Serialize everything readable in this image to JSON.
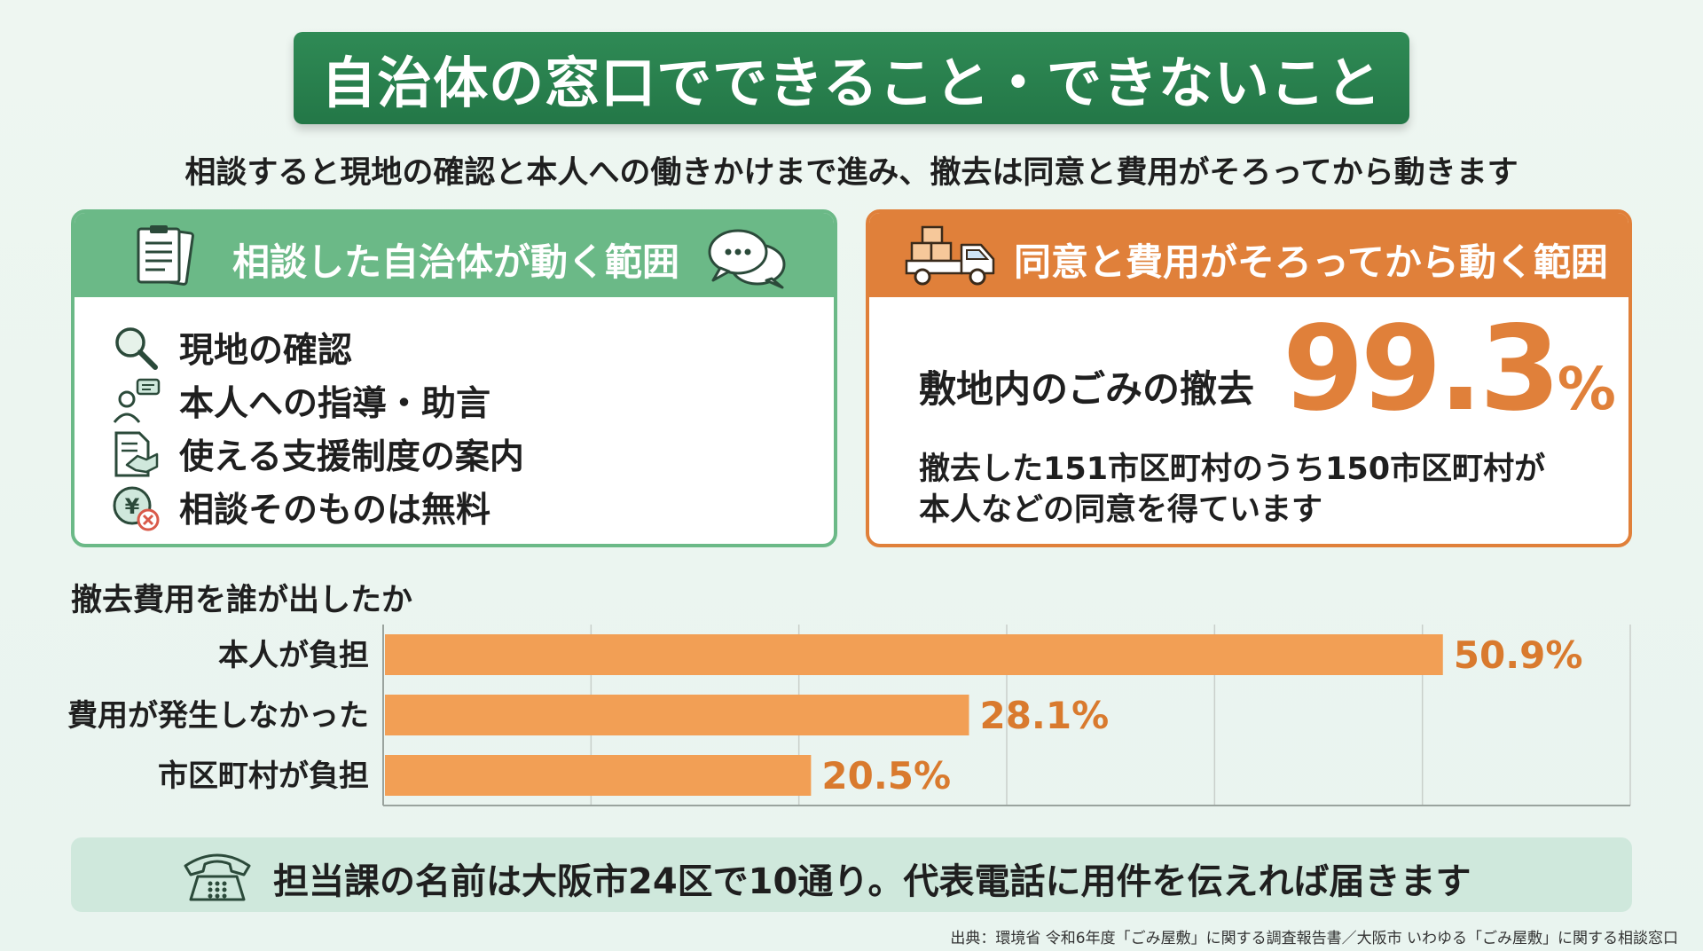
{
  "title": "自治体の窓口でできること・できないこと",
  "subtitle": "相談すると現地の確認と本人への働きかけまで進み、撤去は同意と費用がそろってから動きます",
  "left_card": {
    "heading": "相談した自治体が動く範囲",
    "items": [
      {
        "label": "現地の確認",
        "icon": "magnifier-icon"
      },
      {
        "label": "本人への指導・助言",
        "icon": "person-speech-icon"
      },
      {
        "label": "使える支援制度の案内",
        "icon": "handshake-document-icon"
      },
      {
        "label": "相談そのものは無料",
        "icon": "yen-free-icon"
      }
    ]
  },
  "right_card": {
    "heading": "同意と費用がそろってから動く範囲",
    "stat_label": "敷地内のごみの撤去",
    "stat_value": "99.3",
    "stat_unit": "%",
    "note_line1": "撤去した151市区町村のうち150市区町村が",
    "note_line2": "本人などの同意を得ています"
  },
  "chart_data": {
    "type": "bar",
    "orientation": "horizontal",
    "title": "撤去費用を誰が出したか",
    "categories": [
      "本人が負担",
      "費用が発生しなかった",
      "市区町村が負担"
    ],
    "values": [
      50.9,
      28.1,
      20.5
    ],
    "value_labels": [
      "50.9%",
      "28.1%",
      "20.5%"
    ],
    "xlim": [
      0,
      60
    ],
    "grid": true,
    "bar_color": "#f29f55",
    "label_color": "#d97a2e"
  },
  "footer": {
    "text": "担当課の名前は大阪市24区で10通り。代表電話に用件を伝えれば届きます",
    "icon": "telephone-icon"
  },
  "source": "出典：環境省 令和6年度「ごみ屋敷」に関する調査報告書／大阪市 いわゆる「ごみ屋敷」に関する相談窓口",
  "colors": {
    "green_dark": "#237747",
    "green_light": "#6bb987",
    "orange": "#e0803a"
  }
}
